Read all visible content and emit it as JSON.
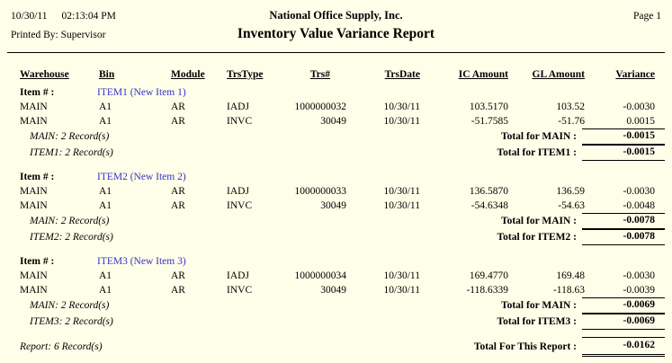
{
  "page": {
    "date": "10/30/11",
    "time": "02:13:04 PM",
    "printed_by": "Printed By: Supervisor",
    "company": "National Office Supply, Inc.",
    "title": "Inventory Value Variance Report",
    "page_label": "Page 1"
  },
  "table": {
    "item_label": "Item # :",
    "headers": {
      "warehouse": "Warehouse",
      "bin": "Bin",
      "module": "Module",
      "trstype": "TrsType",
      "trsnum": "Trs#",
      "trsdate": "TrsDate",
      "ic_amount": "IC Amount",
      "gl_amount": "GL Amount",
      "variance": "Variance"
    }
  },
  "groups": [
    {
      "item": "ITEM1 (New Item 1)",
      "rows": [
        {
          "warehouse": "MAIN",
          "bin": "A1",
          "module": "AR",
          "trstype": "IADJ",
          "trsnum": "1000000032",
          "trsdate": "10/30/11",
          "ic": "103.5170",
          "gl": "103.52",
          "variance": "-0.0030"
        },
        {
          "warehouse": "MAIN",
          "bin": "A1",
          "module": "AR",
          "trstype": "INVC",
          "trsnum": "30049",
          "trsdate": "10/30/11",
          "ic": "-51.7585",
          "gl": "-51.76",
          "variance": "0.0015"
        }
      ],
      "wh_count": "MAIN: 2 Record(s)",
      "wh_total_label": "Total for MAIN :",
      "wh_total": "-0.0015",
      "item_count": "ITEM1: 2 Record(s)",
      "item_total_label": "Total for ITEM1 :",
      "item_total": "-0.0015"
    },
    {
      "item": "ITEM2 (New Item 2)",
      "rows": [
        {
          "warehouse": "MAIN",
          "bin": "A1",
          "module": "AR",
          "trstype": "IADJ",
          "trsnum": "1000000033",
          "trsdate": "10/30/11",
          "ic": "136.5870",
          "gl": "136.59",
          "variance": "-0.0030"
        },
        {
          "warehouse": "MAIN",
          "bin": "A1",
          "module": "AR",
          "trstype": "INVC",
          "trsnum": "30049",
          "trsdate": "10/30/11",
          "ic": "-54.6348",
          "gl": "-54.63",
          "variance": "-0.0048"
        }
      ],
      "wh_count": "MAIN: 2 Record(s)",
      "wh_total_label": "Total for MAIN :",
      "wh_total": "-0.0078",
      "item_count": "ITEM2: 2 Record(s)",
      "item_total_label": "Total for ITEM2 :",
      "item_total": "-0.0078"
    },
    {
      "item": "ITEM3 (New Item 3)",
      "rows": [
        {
          "warehouse": "MAIN",
          "bin": "A1",
          "module": "AR",
          "trstype": "IADJ",
          "trsnum": "1000000034",
          "trsdate": "10/30/11",
          "ic": "169.4770",
          "gl": "169.48",
          "variance": "-0.0030"
        },
        {
          "warehouse": "MAIN",
          "bin": "A1",
          "module": "AR",
          "trstype": "INVC",
          "trsnum": "30049",
          "trsdate": "10/30/11",
          "ic": "-118.6339",
          "gl": "-118.63",
          "variance": "-0.0039"
        }
      ],
      "wh_count": "MAIN: 2 Record(s)",
      "wh_total_label": "Total for MAIN :",
      "wh_total": "-0.0069",
      "item_count": "ITEM3: 2 Record(s)",
      "item_total_label": "Total for ITEM3 :",
      "item_total": "-0.0069"
    }
  ],
  "footer": {
    "report_count": "Report: 6 Record(s)",
    "report_total_label": "Total For This Report :",
    "report_total": "-0.0162"
  }
}
